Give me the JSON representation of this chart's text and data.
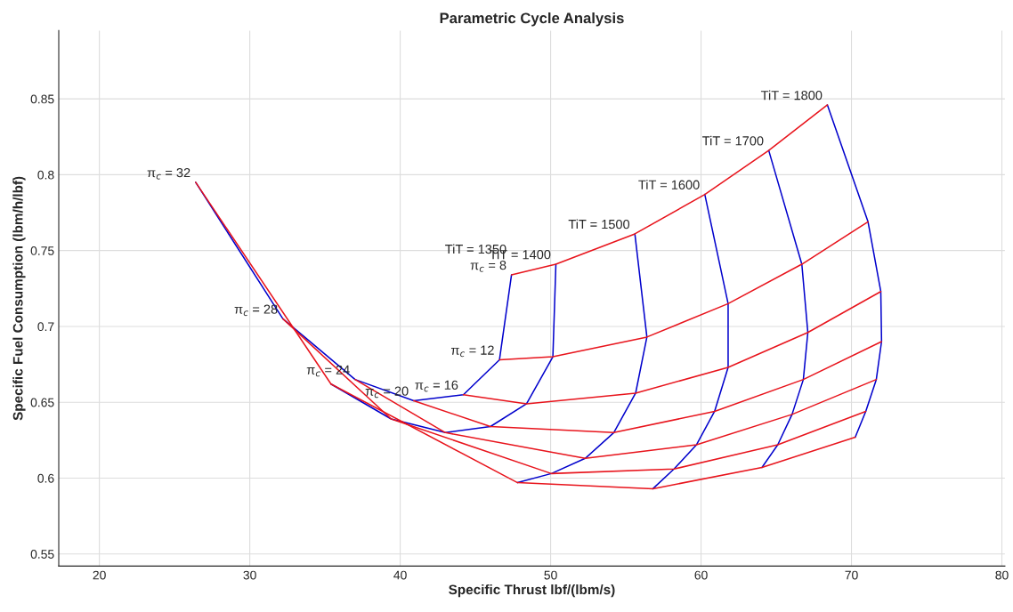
{
  "chart_data": {
    "type": "line",
    "title": "Parametric Cycle Analysis",
    "xlabel": "Specific Thrust lbf/(lbm/s)",
    "ylabel": "Specific Fuel Consumption (lbm/h/lbf)",
    "xlim": [
      17.3,
      80.2
    ],
    "ylim": [
      0.542,
      0.895
    ],
    "xticks": [
      20,
      30,
      40,
      50,
      60,
      70,
      80
    ],
    "yticks": [
      0.55,
      0.6,
      0.65,
      0.7,
      0.75,
      0.8,
      0.85
    ],
    "grid": true,
    "legend": false,
    "marker": "none",
    "line_style": "solid",
    "series": [
      {
        "color": "#0000cc",
        "x": [
          47.4,
          46.6,
          44.2,
          40.9,
          37.0,
          32.2,
          26.4
        ],
        "values": [
          0.734,
          0.678,
          0.655,
          0.651,
          0.665,
          0.705,
          0.795
        ]
      },
      {
        "color": "#0000cc",
        "x": [
          50.35,
          50.15,
          48.4,
          46.0,
          43.0,
          39.4,
          35.4
        ],
        "values": [
          0.741,
          0.68,
          0.649,
          0.634,
          0.63,
          0.639,
          0.662
        ]
      },
      {
        "color": "#0000cc",
        "x": [
          55.6,
          56.4,
          55.65,
          54.2,
          52.3,
          50.05,
          47.8
        ],
        "values": [
          0.761,
          0.693,
          0.656,
          0.63,
          0.613,
          0.603,
          0.597
        ]
      },
      {
        "color": "#0000cc",
        "x": [
          60.25,
          61.8,
          61.8,
          60.9,
          59.7,
          58.2,
          56.8
        ],
        "values": [
          0.787,
          0.715,
          0.673,
          0.644,
          0.622,
          0.606,
          0.593
        ]
      },
      {
        "color": "#0000cc",
        "x": [
          64.5,
          66.7,
          67.1,
          66.8,
          66.05,
          65.1,
          64.05
        ],
        "values": [
          0.816,
          0.741,
          0.696,
          0.665,
          0.642,
          0.622,
          0.607
        ]
      },
      {
        "color": "#0000cc",
        "x": [
          68.4,
          71.1,
          71.95,
          72.0,
          71.65,
          70.95,
          70.25
        ],
        "values": [
          0.846,
          0.769,
          0.723,
          0.69,
          0.665,
          0.644,
          0.627
        ]
      },
      {
        "color": "#e8141c",
        "x": [
          47.4,
          50.35,
          55.6,
          60.25,
          64.5,
          68.4
        ],
        "values": [
          0.734,
          0.741,
          0.761,
          0.787,
          0.816,
          0.846
        ]
      },
      {
        "color": "#e8141c",
        "x": [
          46.6,
          50.15,
          56.4,
          61.8,
          66.7,
          71.1
        ],
        "values": [
          0.678,
          0.68,
          0.693,
          0.715,
          0.741,
          0.769
        ]
      },
      {
        "color": "#e8141c",
        "x": [
          44.2,
          48.4,
          55.65,
          61.8,
          67.1,
          71.95
        ],
        "values": [
          0.655,
          0.649,
          0.656,
          0.673,
          0.696,
          0.723
        ]
      },
      {
        "color": "#e8141c",
        "x": [
          40.9,
          46.0,
          54.2,
          60.9,
          66.8,
          72.0
        ],
        "values": [
          0.651,
          0.634,
          0.63,
          0.644,
          0.665,
          0.69
        ]
      },
      {
        "color": "#e8141c",
        "x": [
          37.0,
          43.0,
          52.3,
          59.7,
          66.05,
          71.65
        ],
        "values": [
          0.665,
          0.63,
          0.613,
          0.622,
          0.642,
          0.665
        ]
      },
      {
        "color": "#e8141c",
        "x": [
          32.2,
          39.4,
          50.05,
          58.2,
          65.1,
          70.95
        ],
        "values": [
          0.705,
          0.639,
          0.603,
          0.606,
          0.622,
          0.644
        ]
      },
      {
        "color": "#e8141c",
        "x": [
          26.4,
          35.4,
          47.8,
          56.8,
          64.05,
          70.25
        ],
        "values": [
          0.795,
          0.662,
          0.597,
          0.593,
          0.607,
          0.627
        ]
      }
    ],
    "annotations": [
      {
        "text": "TiT = 1350",
        "x": 47.4,
        "y": 0.734
      },
      {
        "text": "TiT = 1400",
        "x": 50.35,
        "y": 0.741
      },
      {
        "text": "TiT = 1500",
        "x": 55.6,
        "y": 0.761
      },
      {
        "text": "TiT = 1600",
        "x": 60.25,
        "y": 0.787
      },
      {
        "text": "TiT = 1700",
        "x": 64.5,
        "y": 0.816
      },
      {
        "text": "TiT = 1800",
        "x": 68.4,
        "y": 0.846
      },
      {
        "text": "π$_{c}$ = 8",
        "x": 47.4,
        "y": 0.734
      },
      {
        "text": "π$_{c}$ = 12",
        "x": 46.6,
        "y": 0.678
      },
      {
        "text": "π$_{c}$ = 16",
        "x": 44.2,
        "y": 0.655
      },
      {
        "text": "π$_{c}$ = 20",
        "x": 40.9,
        "y": 0.651
      },
      {
        "text": "π$_{c}$ = 24",
        "x": 37.0,
        "y": 0.665
      },
      {
        "text": "π$_{c}$ = 28",
        "x": 32.2,
        "y": 0.705
      },
      {
        "text": "π$_{c}$ = 32",
        "x": 26.4,
        "y": 0.795
      }
    ]
  }
}
